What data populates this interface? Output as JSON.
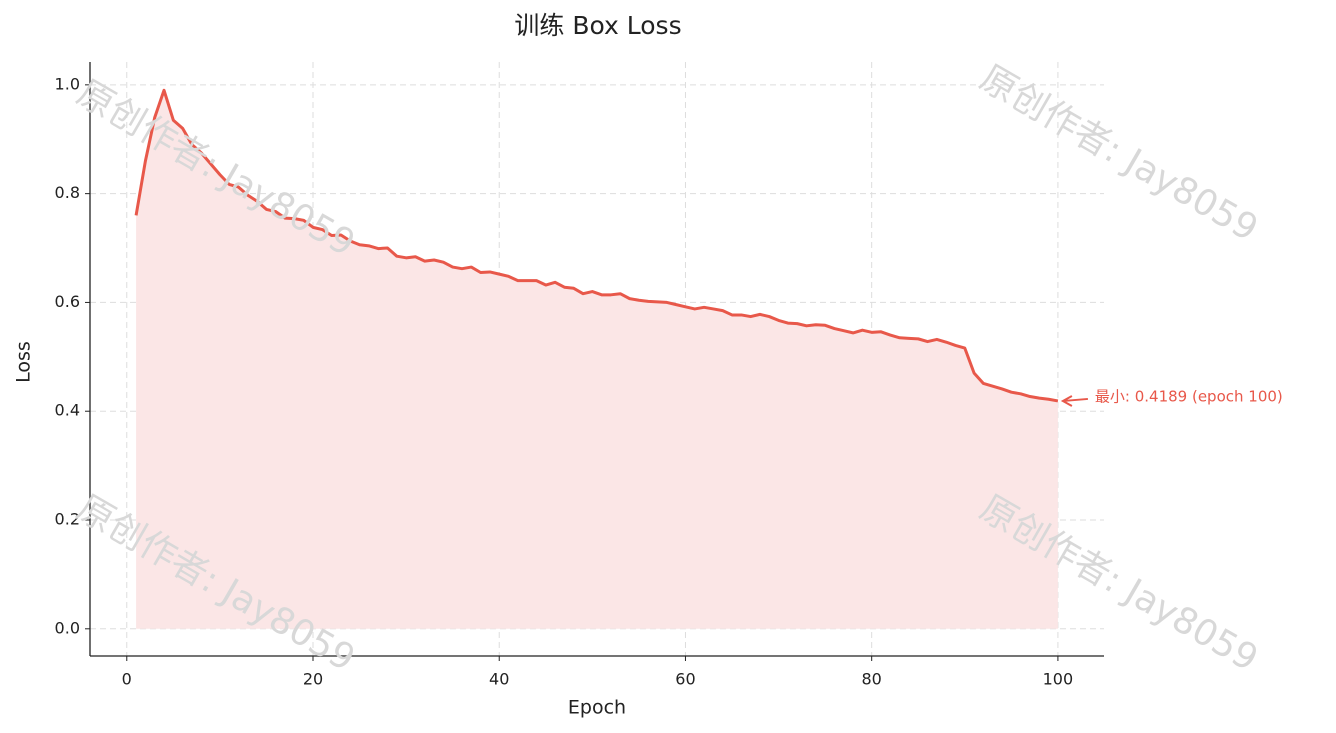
{
  "chart_data": {
    "type": "line",
    "title": "训练 Box Loss",
    "x_label": "Epoch",
    "y_label": "Loss",
    "x": [
      1,
      2,
      3,
      4,
      5,
      6,
      7,
      8,
      9,
      10,
      11,
      12,
      13,
      14,
      15,
      16,
      17,
      18,
      19,
      20,
      21,
      22,
      23,
      24,
      25,
      26,
      27,
      28,
      29,
      30,
      31,
      32,
      33,
      34,
      35,
      36,
      37,
      38,
      39,
      40,
      41,
      42,
      43,
      44,
      45,
      46,
      47,
      48,
      49,
      50,
      51,
      52,
      53,
      54,
      55,
      56,
      57,
      58,
      59,
      60,
      61,
      62,
      63,
      64,
      65,
      66,
      67,
      68,
      69,
      70,
      71,
      72,
      73,
      74,
      75,
      76,
      77,
      78,
      79,
      80,
      81,
      82,
      83,
      84,
      85,
      86,
      87,
      88,
      89,
      90,
      91,
      92,
      93,
      94,
      95,
      96,
      97,
      98,
      99,
      100
    ],
    "y": [
      0.76,
      0.86,
      0.94,
      0.99,
      0.935,
      0.92,
      0.89,
      0.875,
      0.855,
      0.835,
      0.817,
      0.812,
      0.797,
      0.786,
      0.771,
      0.767,
      0.755,
      0.754,
      0.751,
      0.738,
      0.734,
      0.723,
      0.724,
      0.713,
      0.706,
      0.704,
      0.699,
      0.7,
      0.685,
      0.682,
      0.684,
      0.676,
      0.678,
      0.674,
      0.665,
      0.662,
      0.665,
      0.655,
      0.656,
      0.652,
      0.648,
      0.64,
      0.64,
      0.64,
      0.632,
      0.637,
      0.628,
      0.626,
      0.616,
      0.62,
      0.614,
      0.614,
      0.616,
      0.607,
      0.604,
      0.602,
      0.601,
      0.6,
      0.596,
      0.592,
      0.588,
      0.591,
      0.588,
      0.585,
      0.577,
      0.577,
      0.574,
      0.578,
      0.574,
      0.567,
      0.562,
      0.561,
      0.557,
      0.559,
      0.558,
      0.552,
      0.548,
      0.544,
      0.549,
      0.545,
      0.546,
      0.54,
      0.535,
      0.534,
      0.533,
      0.528,
      0.532,
      0.527,
      0.521,
      0.516,
      0.47,
      0.451,
      0.446,
      0.441,
      0.435,
      0.432,
      0.427,
      0.424,
      0.422,
      0.4189
    ],
    "color": "#e8584a",
    "fill_color": "#fbe6e6",
    "xlim": [
      -3.95,
      104.95
    ],
    "ylim": [
      -0.05,
      1.042
    ],
    "xticks": [
      0,
      20,
      40,
      60,
      80,
      100
    ],
    "yticks": [
      {
        "value": 0,
        "label": "0.0"
      },
      0.2,
      0.4,
      0.6,
      0.8,
      {
        "value": 1,
        "label": "1.0"
      }
    ],
    "grid": true,
    "annotation": "最小: 0.4189 (epoch 100)",
    "watermark": "原创作者: Jay8059"
  }
}
